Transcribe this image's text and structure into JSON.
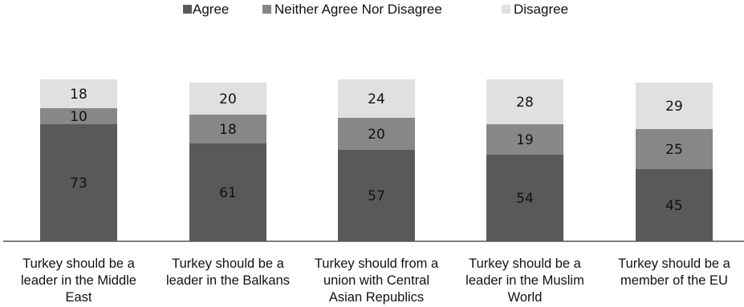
{
  "chart_data": {
    "type": "bar",
    "stacked": true,
    "categories": [
      [
        "Turkey should be a",
        "leader in the Middle",
        "East"
      ],
      [
        "Turkey should be a",
        "leader in the Balkans"
      ],
      [
        "Turkey should from a",
        "union with Central",
        "Asian Republics"
      ],
      [
        "Turkey should be a",
        "leader in the Muslim",
        "World"
      ],
      [
        "Turkey should be a",
        "member of the EU"
      ]
    ],
    "series": [
      {
        "name": "Agree",
        "color": "#595959",
        "values": [
          73,
          61,
          57,
          54,
          45
        ]
      },
      {
        "name": "Neither Agree Nor Disagree",
        "color": "#878787",
        "values": [
          10,
          18,
          20,
          19,
          25
        ]
      },
      {
        "name": "Disagree",
        "color": "#e0e0e0",
        "values": [
          18,
          20,
          24,
          28,
          29
        ]
      }
    ],
    "ylim": [
      0,
      101
    ],
    "grid": false,
    "legend_position": "top",
    "title": "",
    "xlabel": "",
    "ylabel": ""
  }
}
